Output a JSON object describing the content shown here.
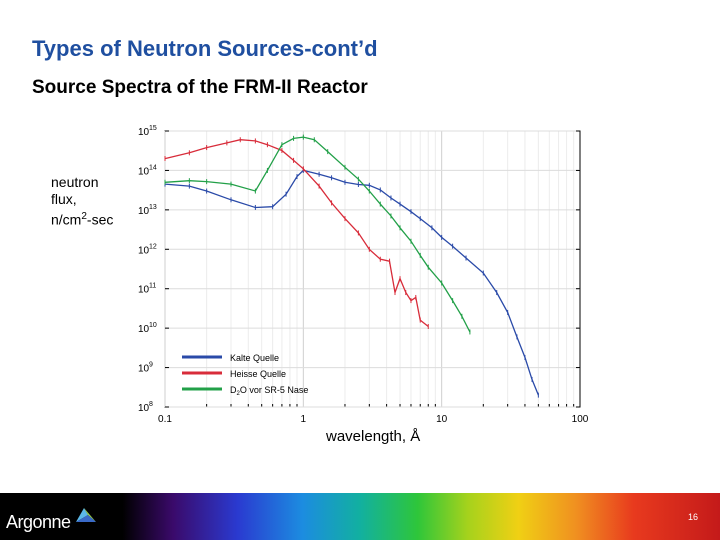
{
  "slide": {
    "title": "Types of Neutron Sources-cont’d",
    "subtitle": "Source Spectra of the FRM-II Reactor",
    "page_number": "16",
    "brand": "Argonne",
    "y_label_lines": [
      "neutron",
      "flux,",
      "n/cm",
      "2",
      "-sec"
    ],
    "x_label": "wavelength, Å"
  },
  "chart_data": {
    "type": "line",
    "x_scale": "log",
    "y_scale": "log",
    "xlim": [
      0.1,
      100
    ],
    "ylim": [
      100000000.0,
      1000000000000000.0
    ],
    "x_ticks": [
      {
        "value": 0.1,
        "label": "0.1"
      },
      {
        "value": 1,
        "label": "1"
      },
      {
        "value": 10,
        "label": "10"
      },
      {
        "value": 100,
        "label": "100"
      }
    ],
    "y_ticks": [
      {
        "value": 1000000000000000.0,
        "base": "10",
        "exp": "15"
      },
      {
        "value": 100000000000000.0,
        "base": "10",
        "exp": "14"
      },
      {
        "value": 10000000000000.0,
        "base": "10",
        "exp": "13"
      },
      {
        "value": 1000000000000.0,
        "base": "10",
        "exp": "12"
      },
      {
        "value": 100000000000.0,
        "base": "10",
        "exp": "11"
      },
      {
        "value": 10000000000.0,
        "base": "10",
        "exp": "10"
      },
      {
        "value": 1000000000.0,
        "base": "10",
        "exp": "9"
      },
      {
        "value": 100000000.0,
        "base": "10",
        "exp": "8"
      }
    ],
    "legend_position": "bottom-left",
    "series": [
      {
        "name": "Kalte Quelle",
        "color": "#2a4aa8",
        "x": [
          0.1,
          0.15,
          0.2,
          0.3,
          0.45,
          0.6,
          0.75,
          0.9,
          1.0,
          1.3,
          1.6,
          2.0,
          2.5,
          3.0,
          3.6,
          4.3,
          5.0,
          6.0,
          7.0,
          8.5,
          10,
          12,
          15,
          20,
          25,
          30,
          35,
          40,
          45,
          50
        ],
        "y": [
          45000000000000.0,
          40000000000000.0,
          30000000000000.0,
          18000000000000.0,
          11500000000000.0,
          12000000000000.0,
          25000000000000.0,
          70000000000000.0,
          100000000000000.0,
          80000000000000.0,
          65000000000000.0,
          50000000000000.0,
          44000000000000.0,
          42000000000000.0,
          32000000000000.0,
          20000000000000.0,
          14000000000000.0,
          9000000000000.0,
          6000000000000.0,
          3500000000000.0,
          2000000000000.0,
          1200000000000.0,
          600000000000.0,
          250000000000.0,
          80000000000.0,
          25000000000.0,
          6000000000.0,
          1800000000.0,
          500000000.0,
          200000000.0
        ]
      },
      {
        "name": "Heisse Quelle",
        "color": "#d82c3a",
        "x": [
          0.1,
          0.15,
          0.2,
          0.28,
          0.35,
          0.45,
          0.55,
          0.7,
          0.85,
          1.0,
          1.3,
          1.6,
          2.0,
          2.5,
          3.0,
          3.6,
          4.2,
          4.6,
          5.0,
          5.5,
          6.0,
          6.5,
          7.0,
          8.0
        ],
        "y": [
          200000000000000.0,
          280000000000000.0,
          380000000000000.0,
          500000000000000.0,
          600000000000000.0,
          560000000000000.0,
          450000000000000.0,
          320000000000000.0,
          180000000000000.0,
          110000000000000.0,
          40000000000000.0,
          15000000000000.0,
          6000000000000.0,
          2600000000000.0,
          1000000000000.0,
          560000000000.0,
          500000000000.0,
          80000000000.0,
          180000000000.0,
          80000000000.0,
          50000000000.0,
          60000000000.0,
          16000000000.0,
          11000000000.0
        ]
      },
      {
        "name": "D2O vor SR-5 Nase",
        "name_parts": [
          "D",
          "2",
          "O vor SR-5 Nase"
        ],
        "color": "#22a048",
        "x": [
          0.1,
          0.15,
          0.2,
          0.3,
          0.45,
          0.55,
          0.7,
          0.85,
          1.0,
          1.2,
          1.5,
          2.0,
          2.5,
          3.0,
          3.6,
          4.3,
          5.0,
          6.0,
          7.0,
          8.0,
          10,
          12,
          14,
          16
        ],
        "y": [
          50000000000000.0,
          55000000000000.0,
          52000000000000.0,
          45000000000000.0,
          30000000000000.0,
          100000000000000.0,
          450000000000000.0,
          650000000000000.0,
          700000000000000.0,
          600000000000000.0,
          300000000000000.0,
          120000000000000.0,
          60000000000000.0,
          30000000000000.0,
          14000000000000.0,
          7000000000000.0,
          3500000000000.0,
          1600000000000.0,
          700000000000.0,
          350000000000.0,
          140000000000.0,
          50000000000.0,
          20000000000.0,
          8000000000.0
        ]
      }
    ]
  },
  "colors": {
    "title": "#1f4fa0"
  }
}
